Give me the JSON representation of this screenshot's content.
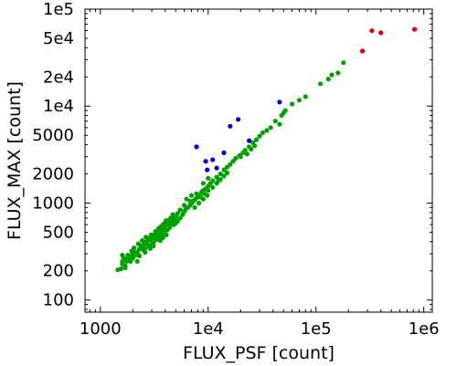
{
  "chart_data": {
    "type": "scatter",
    "xlabel": "FLUX_PSF [count]",
    "ylabel": "FLUX_MAX [count]",
    "x_scale": "log",
    "y_scale": "log",
    "xlim": [
      720,
      1200000
    ],
    "ylim": [
      75,
      100000
    ],
    "x_ticks": [
      {
        "value": 1000,
        "label": "1000"
      },
      {
        "value": 10000,
        "label": "1e4"
      },
      {
        "value": 100000,
        "label": "1e5"
      },
      {
        "value": 1000000,
        "label": "1e6"
      }
    ],
    "y_ticks": [
      {
        "value": 100,
        "label": "100"
      },
      {
        "value": 200,
        "label": "200"
      },
      {
        "value": 500,
        "label": "500"
      },
      {
        "value": 1000,
        "label": "1000"
      },
      {
        "value": 2000,
        "label": "2000"
      },
      {
        "value": 5000,
        "label": "5000"
      },
      {
        "value": 10000,
        "label": "1e4"
      },
      {
        "value": 20000,
        "label": "2e4"
      },
      {
        "value": 50000,
        "label": "5e4"
      },
      {
        "value": 100000,
        "label": "1e5"
      }
    ],
    "grid": false,
    "colors": {
      "green": "#00a000",
      "blue": "#0000d0",
      "red": "#e00000"
    },
    "series": [
      {
        "color": "#00a000",
        "points": [
          [
            1450,
            205
          ],
          [
            1550,
            210
          ],
          [
            1600,
            235
          ],
          [
            1700,
            225
          ],
          [
            1750,
            250
          ],
          [
            1650,
            270
          ],
          [
            1600,
            290
          ],
          [
            1800,
            265
          ],
          [
            1900,
            280
          ],
          [
            2000,
            300
          ],
          [
            2100,
            290
          ],
          [
            1950,
            320
          ],
          [
            2200,
            310
          ],
          [
            2050,
            345
          ],
          [
            2300,
            335
          ],
          [
            2400,
            360
          ],
          [
            2250,
            380
          ],
          [
            2500,
            370
          ],
          [
            2600,
            395
          ],
          [
            2450,
            410
          ],
          [
            2700,
            400
          ],
          [
            2800,
            430
          ],
          [
            2650,
            445
          ],
          [
            2900,
            420
          ],
          [
            3000,
            450
          ],
          [
            3100,
            440
          ],
          [
            2950,
            470
          ],
          [
            3200,
            480
          ],
          [
            3300,
            465
          ],
          [
            3400,
            500
          ],
          [
            3250,
            510
          ],
          [
            3500,
            490
          ],
          [
            3600,
            530
          ],
          [
            3450,
            545
          ],
          [
            3700,
            520
          ],
          [
            3800,
            560
          ],
          [
            3650,
            575
          ],
          [
            3900,
            550
          ],
          [
            4000,
            590
          ],
          [
            3850,
            610
          ],
          [
            4100,
            600
          ],
          [
            4200,
            640
          ],
          [
            4050,
            660
          ],
          [
            4300,
            620
          ],
          [
            4400,
            680
          ],
          [
            4600,
            650
          ],
          [
            4500,
            700
          ],
          [
            4800,
            730
          ],
          [
            5000,
            720
          ],
          [
            4700,
            760
          ],
          [
            5200,
            780
          ],
          [
            3500,
            420
          ],
          [
            3700,
            470
          ],
          [
            3900,
            500
          ],
          [
            4200,
            530
          ],
          [
            3100,
            390
          ],
          [
            2800,
            360
          ],
          [
            2500,
            330
          ],
          [
            2200,
            300
          ],
          [
            1900,
            250
          ],
          [
            1700,
            215
          ],
          [
            2000,
            270
          ],
          [
            2300,
            285
          ],
          [
            2600,
            340
          ],
          [
            3000,
            380
          ],
          [
            3300,
            420
          ],
          [
            3600,
            455
          ],
          [
            4000,
            480
          ],
          [
            4400,
            560
          ],
          [
            4800,
            600
          ],
          [
            5200,
            650
          ],
          [
            5500,
            700
          ],
          [
            5800,
            760
          ],
          [
            6000,
            820
          ],
          [
            6200,
            870
          ],
          [
            6500,
            900
          ],
          [
            6800,
            950
          ],
          [
            7000,
            1000
          ],
          [
            7300,
            1050
          ],
          [
            7600,
            1100
          ],
          [
            8000,
            1150
          ],
          [
            8300,
            1200
          ],
          [
            8700,
            1300
          ],
          [
            9000,
            1350
          ],
          [
            9500,
            1400
          ],
          [
            10000,
            1500
          ],
          [
            10500,
            1600
          ],
          [
            11000,
            1700
          ],
          [
            12000,
            1850
          ],
          [
            13000,
            2000
          ],
          [
            14000,
            2200
          ],
          [
            15000,
            2350
          ],
          [
            16000,
            2500
          ],
          [
            6300,
            1100
          ],
          [
            7000,
            1200
          ],
          [
            7800,
            1250
          ],
          [
            8500,
            1150
          ],
          [
            9200,
            1250
          ],
          [
            10000,
            1350
          ],
          [
            11000,
            1450
          ],
          [
            12000,
            1600
          ],
          [
            13000,
            1750
          ],
          [
            14000,
            1900
          ],
          [
            15000,
            2050
          ],
          [
            5500,
            850
          ],
          [
            6000,
            950
          ],
          [
            6800,
            1050
          ],
          [
            7500,
            900
          ],
          [
            8200,
            1000
          ],
          [
            9000,
            1100
          ],
          [
            9800,
            1200
          ],
          [
            17000,
            2700
          ],
          [
            18000,
            2900
          ],
          [
            19500,
            3100
          ],
          [
            21000,
            3300
          ],
          [
            22000,
            3500
          ],
          [
            24000,
            3800
          ],
          [
            26000,
            4200
          ],
          [
            28000,
            4500
          ],
          [
            30000,
            4900
          ],
          [
            20000,
            3000
          ],
          [
            23000,
            3200
          ],
          [
            25000,
            3600
          ],
          [
            27000,
            3900
          ],
          [
            32000,
            5300
          ],
          [
            35000,
            5600
          ],
          [
            38000,
            6000
          ],
          [
            42000,
            7000
          ],
          [
            48000,
            8000
          ],
          [
            52000,
            9000
          ],
          [
            46000,
            6500
          ],
          [
            50000,
            8500
          ],
          [
            60000,
            10500
          ],
          [
            70000,
            11500
          ],
          [
            80000,
            12500
          ],
          [
            110000,
            17000
          ],
          [
            130000,
            19000
          ],
          [
            140000,
            21000
          ],
          [
            180000,
            28000
          ],
          [
            160000,
            22000
          ],
          [
            9000,
            1600
          ],
          [
            10000,
            1800
          ],
          [
            12500,
            1700
          ],
          [
            4500,
            600
          ],
          [
            4800,
            680
          ],
          [
            5000,
            620
          ],
          [
            3400,
            455
          ],
          [
            3200,
            430
          ],
          [
            2700,
            380
          ],
          [
            2400,
            350
          ],
          [
            2100,
            310
          ],
          [
            1800,
            290
          ],
          [
            1600,
            250
          ],
          [
            2200,
            250
          ],
          [
            2600,
            310
          ],
          [
            2900,
            340
          ],
          [
            3100,
            360
          ],
          [
            3600,
            410
          ],
          [
            3800,
            440
          ],
          [
            4100,
            470
          ]
        ]
      },
      {
        "color": "#0000d0",
        "points": [
          [
            7800,
            3800
          ],
          [
            9500,
            2700
          ],
          [
            9800,
            2200
          ],
          [
            11000,
            2800
          ],
          [
            12000,
            2300
          ],
          [
            14000,
            3300
          ],
          [
            16000,
            6200
          ],
          [
            19000,
            7300
          ],
          [
            24000,
            4400
          ],
          [
            46000,
            11000
          ]
        ]
      },
      {
        "color": "#e00000",
        "points": [
          [
            270000,
            37000
          ],
          [
            330000,
            60000
          ],
          [
            400000,
            57000
          ],
          [
            820000,
            62000
          ]
        ]
      }
    ]
  }
}
